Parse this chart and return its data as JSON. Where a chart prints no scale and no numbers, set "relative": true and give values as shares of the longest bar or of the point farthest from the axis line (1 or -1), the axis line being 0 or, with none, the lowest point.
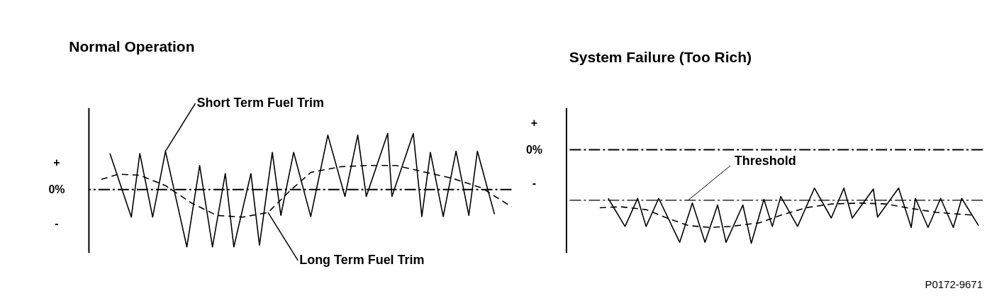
{
  "chart_data": [
    {
      "type": "line",
      "title": "Normal Operation",
      "relative": true,
      "tick_labels": false,
      "categories": [
        null,
        null,
        null,
        null,
        null,
        null,
        null,
        null,
        null,
        null,
        null,
        null,
        null,
        null,
        null,
        null,
        null,
        null,
        null,
        null,
        null,
        null,
        null,
        null,
        null,
        null,
        null,
        null,
        null,
        null,
        null,
        null,
        null,
        null,
        null,
        null,
        null,
        null,
        null,
        null,
        null,
        null,
        null,
        null,
        null,
        null,
        null,
        null,
        null,
        null,
        null,
        null,
        null,
        null,
        null,
        null,
        null,
        null,
        null,
        null,
        null,
        null,
        null,
        null,
        null,
        null,
        null,
        null,
        null,
        null,
        null,
        null,
        null,
        null,
        null,
        null,
        null,
        null,
        null,
        null,
        null,
        null,
        null,
        null,
        null,
        null,
        null,
        null,
        null,
        null,
        null,
        null,
        null,
        null,
        null,
        null,
        null,
        null,
        null,
        null
      ],
      "series": [
        {
          "name": "Short Term Fuel Trim",
          "color": "#000000",
          "line_style": "solid",
          "values": [
            null,
            null,
            null,
            null,
            null,
            0.63,
            null,
            null,
            null,
            null,
            -0.48,
            null,
            0.63,
            null,
            null,
            -0.48,
            null,
            null,
            0.67,
            null,
            null,
            null,
            null,
            -1,
            null,
            null,
            0.42,
            null,
            null,
            -1,
            null,
            null,
            0.28,
            null,
            -1,
            null,
            null,
            null,
            0.28,
            null,
            -0.97,
            null,
            null,
            0.65,
            null,
            -0.45,
            null,
            null,
            0.65,
            null,
            null,
            null,
            -0.47,
            null,
            null,
            null,
            0.95,
            null,
            null,
            null,
            -0.12,
            null,
            null,
            0.95,
            null,
            -0.12,
            null,
            null,
            null,
            null,
            0.98,
            -0.12,
            null,
            null,
            null,
            null,
            0.98,
            null,
            -0.47,
            null,
            0.65,
            null,
            null,
            -0.47,
            null,
            null,
            0.67,
            null,
            null,
            -0.45,
            null,
            0.67,
            null,
            null,
            null,
            -0.43,
            null,
            null,
            null,
            null
          ]
        },
        {
          "name": "Long Term Fuel Trim",
          "color": "#000000",
          "line_style": "dashed",
          "values": [
            null,
            null,
            null,
            0.18,
            null,
            null,
            null,
            0.27,
            null,
            null,
            null,
            null,
            0.25,
            null,
            null,
            null,
            null,
            null,
            0.07,
            null,
            null,
            null,
            null,
            null,
            -0.23,
            null,
            null,
            null,
            null,
            null,
            -0.45,
            null,
            null,
            null,
            null,
            null,
            -0.48,
            null,
            null,
            null,
            null,
            null,
            -0.4,
            null,
            null,
            null,
            null,
            -0.03,
            null,
            null,
            null,
            null,
            0.3,
            null,
            null,
            null,
            null,
            null,
            null,
            0.4,
            null,
            null,
            null,
            null,
            null,
            0.42,
            null,
            null,
            null,
            null,
            null,
            null,
            0.42,
            null,
            null,
            null,
            null,
            null,
            null,
            0.3,
            null,
            null,
            null,
            null,
            null,
            0.2,
            null,
            null,
            null,
            null,
            null,
            null,
            0.03,
            null,
            null,
            null,
            null,
            null,
            null,
            -0.3
          ]
        }
      ],
      "ref_lines": [
        {
          "axis": "y",
          "value": 0,
          "color": "#000000",
          "line_style": "dashed"
        }
      ],
      "annotations": [
        "+",
        "0%",
        "-"
      ]
    },
    {
      "type": "line",
      "title": "System Failure (Too Rich)",
      "relative": true,
      "tick_labels": false,
      "categories": [
        null,
        null,
        null,
        null,
        null,
        null,
        null,
        null,
        null,
        null,
        null,
        null,
        null,
        null,
        null,
        null,
        null,
        null,
        null,
        null,
        null,
        null,
        null,
        null,
        null,
        null,
        null,
        null,
        null,
        null,
        null,
        null,
        null,
        null,
        null,
        null,
        null,
        null,
        null,
        null,
        null,
        null,
        null,
        null,
        null,
        null,
        null,
        null,
        null,
        null,
        null,
        null,
        null,
        null,
        null,
        null,
        null,
        null,
        null,
        null,
        null,
        null,
        null,
        null,
        null,
        null,
        null,
        null,
        null,
        null,
        null,
        null,
        null,
        null,
        null,
        null,
        null,
        null,
        null,
        null,
        null,
        null,
        null,
        null,
        null,
        null,
        null,
        null,
        null,
        null,
        null,
        null,
        null,
        null,
        null,
        null,
        null,
        null,
        null,
        null
      ],
      "series": [
        {
          "color": "#000000",
          "line_style": "solid",
          "values": [
            null,
            null,
            null,
            null,
            null,
            null,
            null,
            null,
            null,
            null,
            -0.52,
            null,
            null,
            null,
            -0.82,
            null,
            null,
            -0.52,
            null,
            -0.82,
            null,
            null,
            -0.52,
            null,
            null,
            null,
            null,
            -0.99,
            null,
            null,
            -0.57,
            null,
            null,
            -0.99,
            null,
            null,
            -0.59,
            null,
            -0.99,
            null,
            null,
            null,
            -0.59,
            null,
            -1,
            null,
            null,
            -0.53,
            null,
            -0.82,
            null,
            -0.5,
            null,
            null,
            null,
            -0.82,
            null,
            null,
            null,
            -0.41,
            null,
            null,
            null,
            -0.73,
            null,
            null,
            -0.41,
            null,
            -0.73,
            null,
            null,
            null,
            null,
            -0.42,
            -0.72,
            null,
            null,
            null,
            null,
            -0.41,
            null,
            null,
            -0.83,
            -0.52,
            null,
            null,
            -0.83,
            null,
            null,
            -0.52,
            null,
            null,
            -0.83,
            null,
            -0.52,
            null,
            null,
            null,
            -0.81,
            null
          ]
        },
        {
          "color": "#000000",
          "line_style": "dashed",
          "values": [
            null,
            null,
            null,
            null,
            null,
            null,
            null,
            null,
            -0.62,
            null,
            null,
            null,
            null,
            -0.61,
            null,
            null,
            null,
            null,
            null,
            -0.64,
            null,
            null,
            null,
            null,
            -0.73,
            null,
            null,
            null,
            null,
            -0.81,
            null,
            null,
            null,
            null,
            -0.83,
            null,
            null,
            null,
            null,
            -0.82,
            null,
            null,
            null,
            null,
            null,
            null,
            -0.78,
            null,
            null,
            null,
            null,
            -0.7,
            null,
            null,
            null,
            null,
            null,
            -0.62,
            null,
            null,
            null,
            null,
            null,
            -0.58,
            null,
            null,
            null,
            null,
            null,
            null,
            -0.57,
            null,
            null,
            null,
            null,
            null,
            -0.58,
            null,
            null,
            null,
            null,
            -0.62,
            null,
            null,
            null,
            null,
            null,
            null,
            -0.67,
            null,
            null,
            null,
            null,
            null,
            null,
            null,
            null,
            -0.7,
            null,
            null
          ]
        }
      ],
      "ref_lines": [
        {
          "axis": "y",
          "value": 0,
          "color": "#000000",
          "line_style": "dashed"
        },
        {
          "axis": "y",
          "value": -0.54,
          "label": "Threshold",
          "color": "#000000",
          "line_style": "dashed"
        }
      ],
      "annotations": [
        "+",
        "0%",
        "-",
        "P0172-9671"
      ]
    }
  ]
}
